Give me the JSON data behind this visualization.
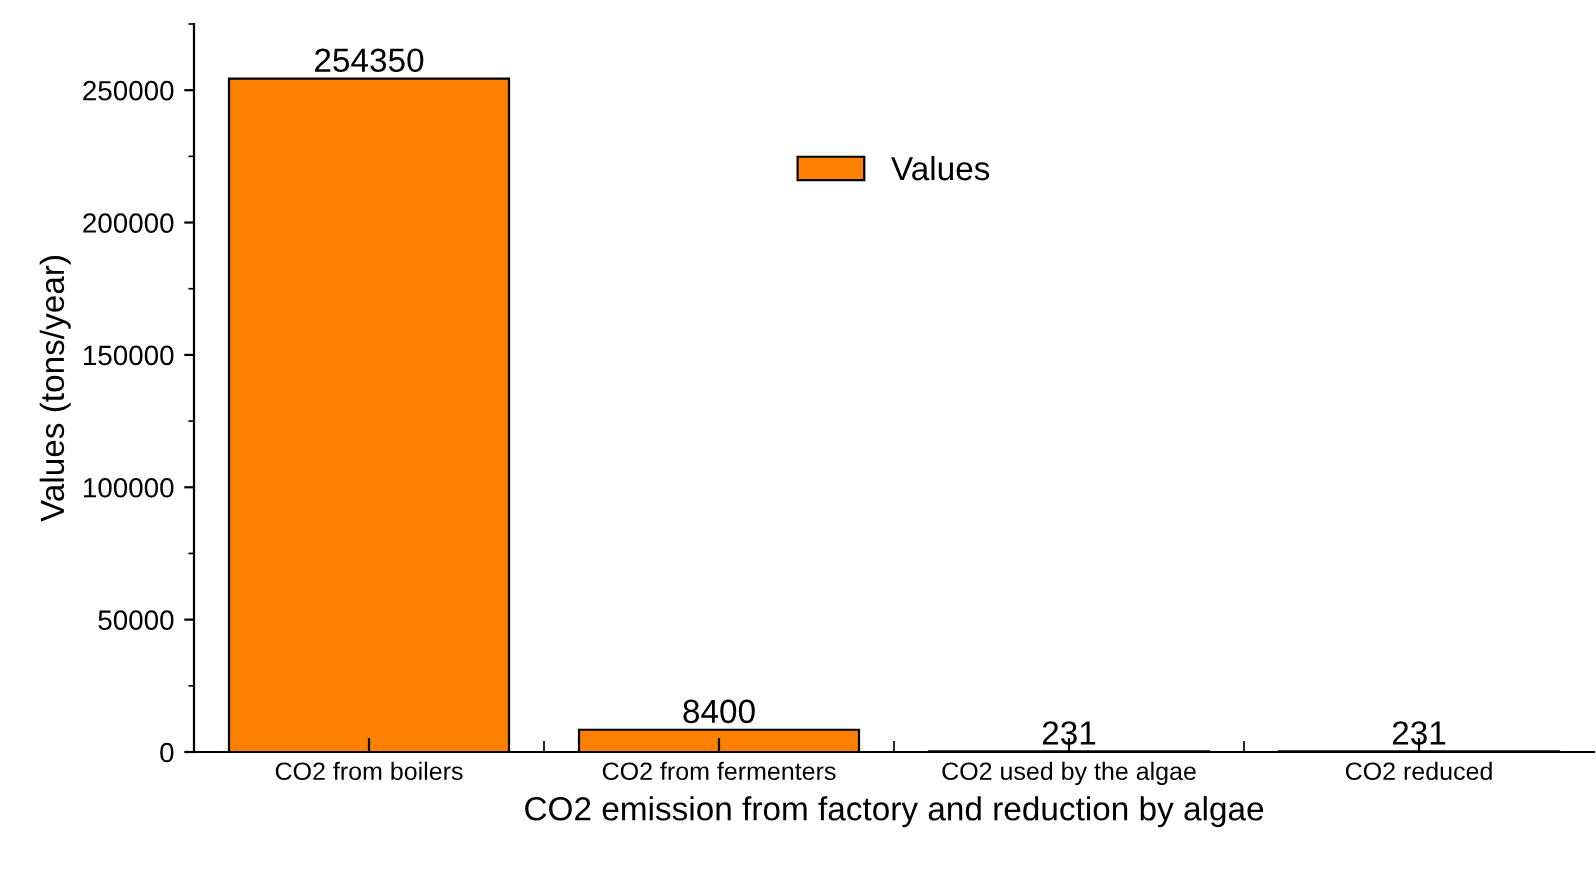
{
  "chart_data": {
    "type": "bar",
    "xlabel": "CO2 emission from factory and reduction by algae",
    "ylabel": "Values (tons/year)",
    "categories": [
      "CO2 from boilers",
      "CO2 from fermenters",
      "CO2 used by the algae",
      "CO2 reduced"
    ],
    "series": [
      {
        "name": "Values",
        "color": "#ff8000",
        "values": [
          254350,
          8400,
          231,
          231
        ]
      }
    ],
    "ylim": [
      0,
      275000
    ],
    "yticks": [
      0,
      50000,
      100000,
      150000,
      200000,
      250000
    ],
    "data_labels": true,
    "legend": "top",
    "grid": false
  }
}
